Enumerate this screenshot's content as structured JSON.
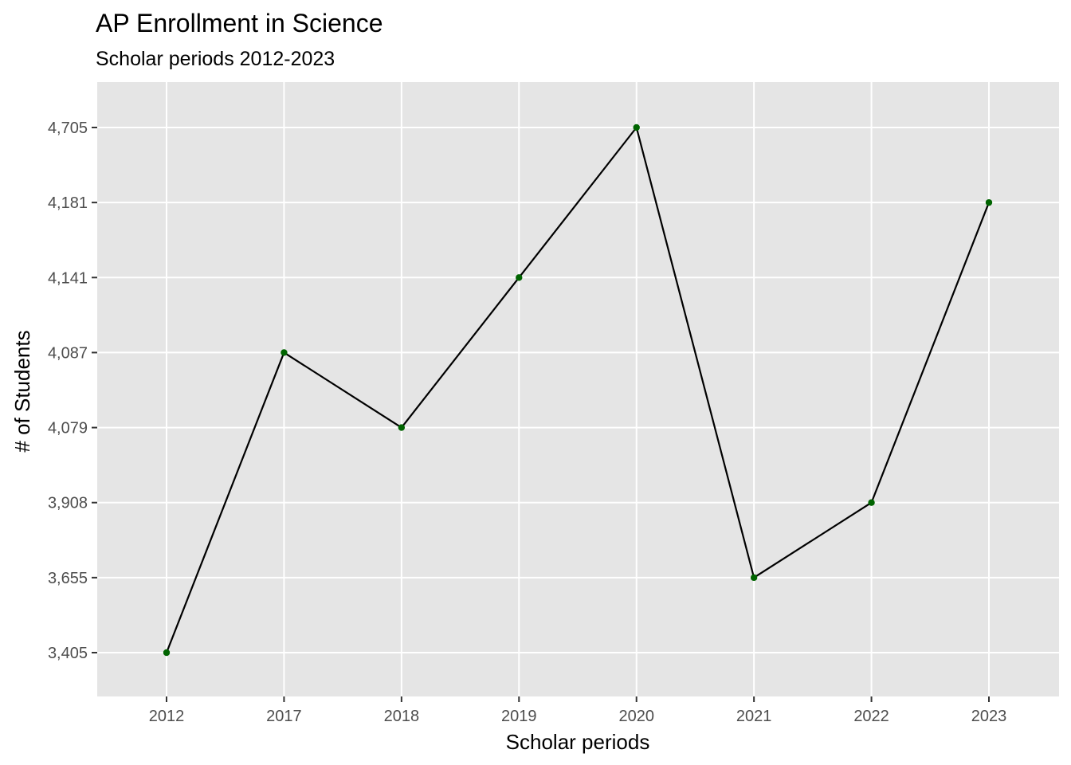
{
  "chart_data": {
    "type": "line",
    "title": "AP Enrollment in Science",
    "subtitle": "Scholar periods 2012-2023",
    "xlabel": "Scholar periods",
    "ylabel": "# of Students",
    "categories": [
      "2012",
      "2017",
      "2018",
      "2019",
      "2020",
      "2021",
      "2022",
      "2023"
    ],
    "values": [
      3405,
      4087,
      4079,
      4141,
      4705,
      3655,
      3908,
      4181
    ],
    "y_ticks": [
      "4,705",
      "4,181",
      "4,141",
      "4,087",
      "4,079",
      "3,908",
      "3,655",
      "3,405"
    ],
    "y_scale": "ordinal-by-rank",
    "grid": true,
    "legend": "none"
  },
  "colors": {
    "panel_background": "#e5e5e5",
    "grid": "#ffffff",
    "line": "#000000",
    "point": "#006400",
    "tick_text": "#4d4d4d",
    "tick_mark": "#333333"
  }
}
